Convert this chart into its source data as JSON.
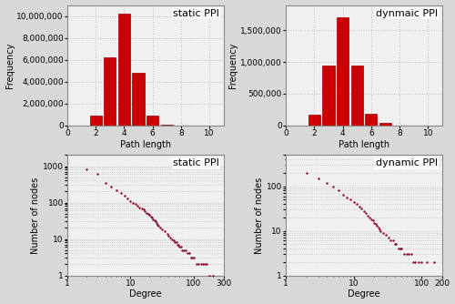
{
  "static_hist": {
    "title": "static PPI",
    "xlabel": "Path length",
    "ylabel": "Frequency",
    "bins": [
      2,
      3,
      4,
      5,
      6,
      7
    ],
    "values": [
      900000,
      6200000,
      10200000,
      4800000,
      900000,
      50000
    ],
    "ylim": [
      0,
      11000000
    ],
    "yticks": [
      0,
      2000000,
      4000000,
      6000000,
      8000000,
      10000000
    ],
    "xticks": [
      0,
      2,
      4,
      6,
      8,
      10
    ],
    "xlim": [
      0,
      11
    ]
  },
  "dynamic_hist": {
    "title": "dynmaic PPI",
    "xlabel": "Path length",
    "ylabel": "Frequency",
    "bins": [
      2,
      3,
      4,
      5,
      6,
      7
    ],
    "values": [
      170000,
      950000,
      1700000,
      950000,
      180000,
      30000
    ],
    "ylim": [
      0,
      1900000
    ],
    "yticks": [
      0,
      500000,
      1000000,
      1500000
    ],
    "xticks": [
      0,
      2,
      4,
      6,
      8,
      10
    ],
    "xlim": [
      0,
      11
    ]
  },
  "static_scatter": {
    "title": "static PPI",
    "xlabel": "Degree",
    "ylabel": "Number of nodes",
    "xlim": [
      1,
      300
    ],
    "ylim": [
      1,
      2000
    ],
    "xticks": [
      1,
      10,
      100,
      300
    ],
    "xticklabels": [
      "1",
      "10",
      "100",
      "300"
    ],
    "yticks": [
      1,
      2,
      3,
      4,
      5,
      6,
      7,
      8,
      9,
      10,
      20,
      30,
      40,
      50,
      60,
      70,
      80,
      90,
      100,
      200,
      300,
      400,
      500,
      600,
      700,
      800,
      900,
      1000,
      2000
    ],
    "yticklabels_show": [
      1,
      10,
      100,
      1000
    ],
    "x": [
      2,
      3,
      4,
      5,
      6,
      7,
      8,
      9,
      10,
      11,
      12,
      13,
      14,
      15,
      16,
      17,
      18,
      19,
      20,
      21,
      22,
      23,
      24,
      25,
      26,
      27,
      28,
      30,
      32,
      35,
      38,
      40,
      42,
      45,
      48,
      50,
      53,
      55,
      58,
      60,
      63,
      65,
      70,
      75,
      80,
      85,
      90,
      95,
      100,
      110,
      120,
      130,
      140,
      150,
      160,
      180,
      200
    ],
    "y": [
      800,
      600,
      350,
      280,
      220,
      180,
      150,
      130,
      110,
      100,
      90,
      80,
      75,
      70,
      65,
      58,
      52,
      48,
      45,
      42,
      38,
      35,
      32,
      30,
      28,
      25,
      23,
      20,
      18,
      16,
      14,
      12,
      11,
      10,
      9,
      8,
      8,
      7,
      7,
      6,
      6,
      5,
      5,
      5,
      4,
      4,
      3,
      3,
      3,
      2,
      2,
      2,
      2,
      2,
      2,
      1,
      1
    ]
  },
  "dynamic_scatter": {
    "title": "dynamic PPI",
    "xlabel": "Degree",
    "ylabel": "Number of nodes",
    "xlim": [
      1,
      200
    ],
    "ylim": [
      1,
      500
    ],
    "xticks": [
      1,
      10,
      100,
      200
    ],
    "xticklabels": [
      "1",
      "10",
      "100",
      "200"
    ],
    "yticks": [
      1,
      2,
      3,
      4,
      5,
      6,
      7,
      8,
      9,
      10,
      20,
      30,
      40,
      50,
      60,
      70,
      80,
      90,
      100,
      200,
      500
    ],
    "yticklabels_show": [
      1,
      10,
      100
    ],
    "x": [
      2,
      3,
      4,
      5,
      6,
      7,
      8,
      9,
      10,
      11,
      12,
      13,
      14,
      15,
      16,
      17,
      18,
      19,
      20,
      21,
      22,
      23,
      24,
      25,
      27,
      30,
      33,
      35,
      38,
      40,
      42,
      45,
      48,
      50,
      55,
      60,
      65,
      70,
      75,
      80,
      90,
      100,
      120,
      150
    ],
    "y": [
      200,
      150,
      120,
      100,
      80,
      65,
      55,
      50,
      45,
      40,
      35,
      32,
      28,
      25,
      22,
      20,
      18,
      17,
      15,
      14,
      13,
      12,
      11,
      10,
      9,
      8,
      7,
      6,
      6,
      5,
      5,
      4,
      4,
      4,
      3,
      3,
      3,
      3,
      2,
      2,
      2,
      2,
      2,
      2
    ]
  },
  "bar_color": "#cc0000",
  "bar_edge_color": "#990000",
  "scatter_color": "#880022",
  "grid_color": "#c0c0c0",
  "plot_bg": "#f0f0f0",
  "outer_bg": "#d8d8d8",
  "title_fontsize": 8,
  "label_fontsize": 7,
  "tick_fontsize": 6.5
}
